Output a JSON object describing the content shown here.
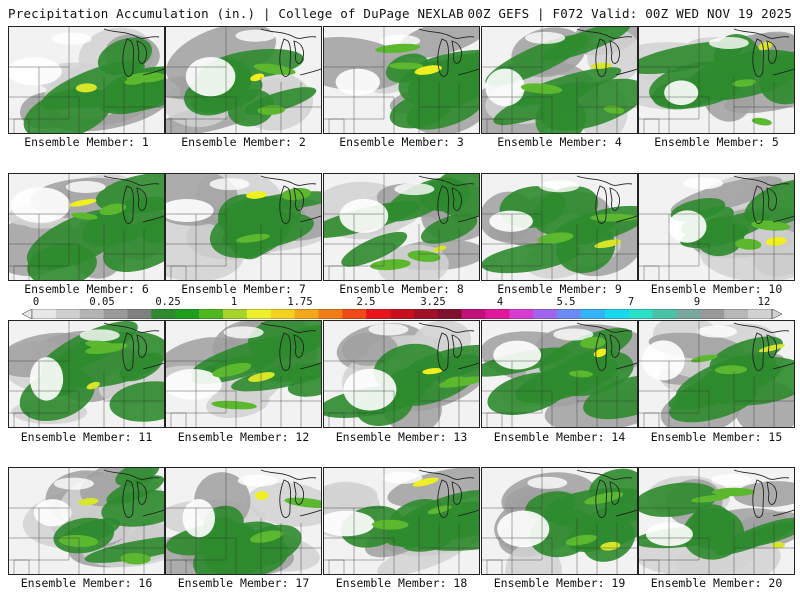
{
  "header": {
    "title_left": "Precipitation Accumulation (in.) | College of DuPage NEXLAB",
    "title_right": "00Z GEFS | F072 Valid: 00Z WED NOV 19 2025"
  },
  "members": [
    "Ensemble Member: 1",
    "Ensemble Member: 2",
    "Ensemble Member: 3",
    "Ensemble Member: 4",
    "Ensemble Member: 5",
    "Ensemble Member: 6",
    "Ensemble Member: 7",
    "Ensemble Member: 8",
    "Ensemble Member: 9",
    "Ensemble Member: 10",
    "Ensemble Member: 11",
    "Ensemble Member: 12",
    "Ensemble Member: 13",
    "Ensemble Member: 14",
    "Ensemble Member: 15",
    "Ensemble Member: 16",
    "Ensemble Member: 17",
    "Ensemble Member: 18",
    "Ensemble Member: 19",
    "Ensemble Member: 20"
  ],
  "colorbar": {
    "labels": [
      "0",
      "0.05",
      "0.25",
      "1",
      "1.75",
      "2.5",
      "3.25",
      "4",
      "5.5",
      "7",
      "9",
      "12"
    ],
    "colors": [
      "#e8e8e8",
      "#cfcfcf",
      "#b4b4b4",
      "#9a9a9a",
      "#808080",
      "#2f8a2f",
      "#1f9e1f",
      "#4db81f",
      "#a6d42a",
      "#ecf02a",
      "#f5d21f",
      "#f2a81a",
      "#f07d18",
      "#ee4a18",
      "#e8161c",
      "#c8101c",
      "#a01026",
      "#80102e",
      "#c0107a",
      "#e0189a",
      "#d63cd0",
      "#a064ee",
      "#6a8cf4",
      "#32b4f6",
      "#18d8f0",
      "#2ae0c8",
      "#4ac2a8",
      "#7aa8a0",
      "#9a9a9a",
      "#b8b8b8",
      "#d2d2d2"
    ]
  },
  "colors": {
    "light_gray": "#d2d2d2",
    "mid_gray": "#a0a0a0",
    "dark_gray": "#7c7c7c",
    "green": "#2e8b2e",
    "light_green": "#5cb82e",
    "yellow": "#d8e62a",
    "bright_yellow": "#f0f020"
  }
}
